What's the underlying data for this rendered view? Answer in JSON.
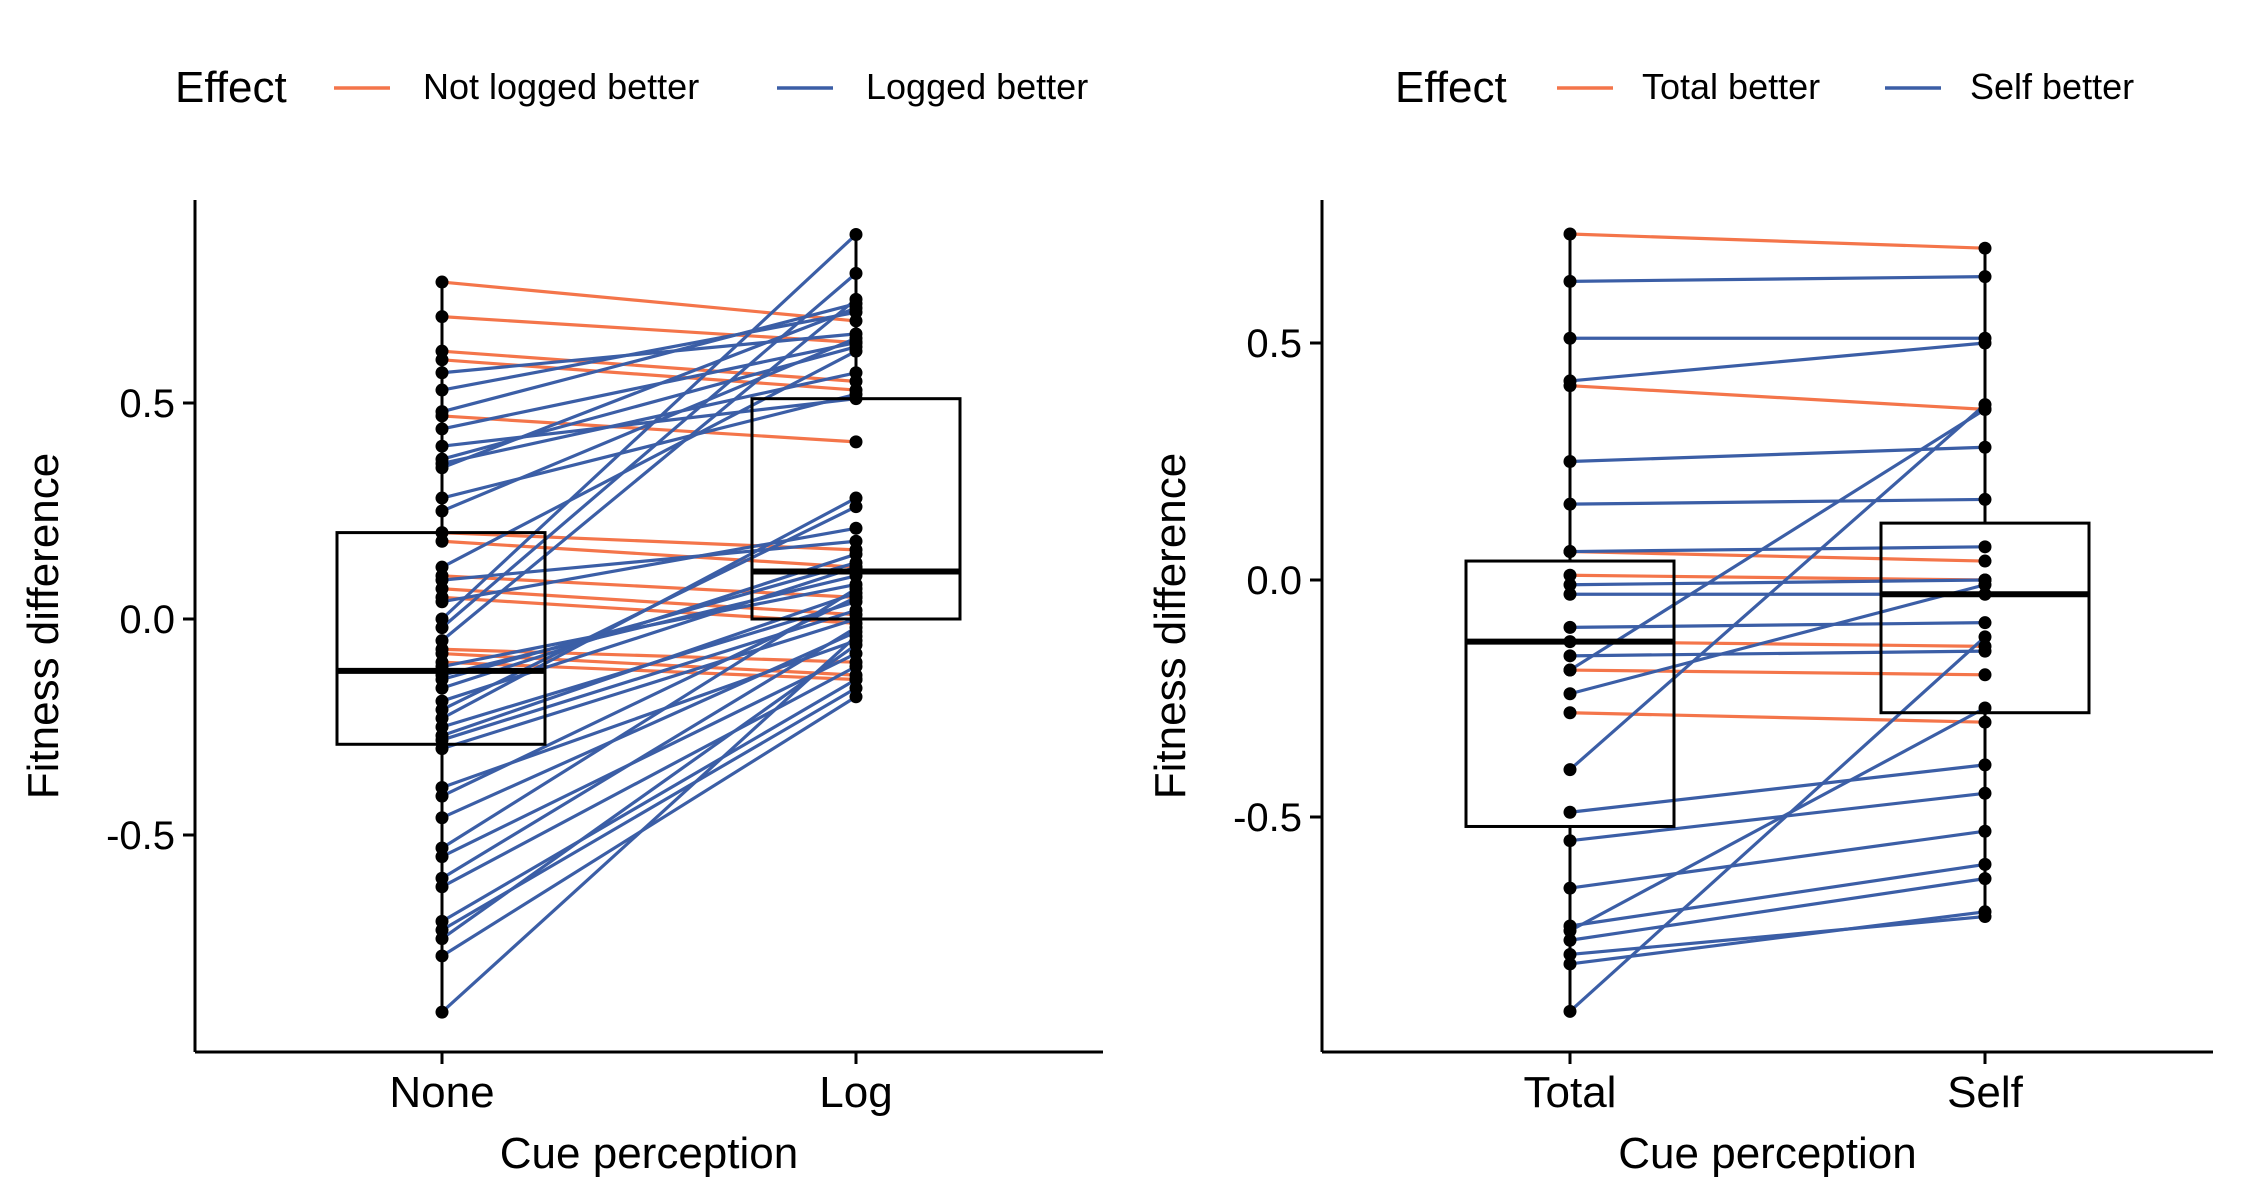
{
  "chart_data": [
    {
      "type": "paired-line-box",
      "categories": [
        "None",
        "Log"
      ],
      "xlabel": "Cue perception",
      "ylabel": "Fitness difference",
      "yticks": [
        -0.5,
        0.0,
        0.5
      ],
      "ytick_labels": [
        "-0.5",
        "0.0",
        "0.5"
      ],
      "ylim": [
        -1.0,
        0.97
      ],
      "legend": {
        "title": "Effect",
        "position": "top",
        "entries": [
          {
            "label": "Not logged better",
            "color": "#f4754a"
          },
          {
            "label": "Logged better",
            "color": "#3b5ea6"
          }
        ]
      },
      "boxes": [
        {
          "category": "None",
          "q1": -0.29,
          "median": -0.12,
          "q3": 0.2,
          "ymin": -0.91,
          "ymax": 0.78
        },
        {
          "category": "Log",
          "q1": 0.0,
          "median": 0.11,
          "q3": 0.51,
          "ymin": -0.18,
          "ymax": 0.89
        }
      ],
      "pairs": [
        {
          "from": 0.78,
          "to": 0.69,
          "group": 0
        },
        {
          "from": 0.7,
          "to": 0.64,
          "group": 0
        },
        {
          "from": 0.62,
          "to": 0.55,
          "group": 0
        },
        {
          "from": 0.6,
          "to": 0.53,
          "group": 0
        },
        {
          "from": 0.47,
          "to": 0.41,
          "group": 0
        },
        {
          "from": 0.2,
          "to": 0.16,
          "group": 0
        },
        {
          "from": 0.18,
          "to": 0.12,
          "group": 0
        },
        {
          "from": 0.1,
          "to": 0.05,
          "group": 0
        },
        {
          "from": 0.07,
          "to": 0.01,
          "group": 0
        },
        {
          "from": 0.05,
          "to": -0.01,
          "group": 0
        },
        {
          "from": -0.07,
          "to": -0.1,
          "group": 0
        },
        {
          "from": -0.08,
          "to": -0.13,
          "group": 0
        },
        {
          "from": -0.1,
          "to": -0.14,
          "group": 0
        },
        {
          "from": 0.57,
          "to": 0.66,
          "group": 1
        },
        {
          "from": 0.53,
          "to": 0.71,
          "group": 1
        },
        {
          "from": 0.48,
          "to": 0.73,
          "group": 1
        },
        {
          "from": 0.44,
          "to": 0.64,
          "group": 1
        },
        {
          "from": 0.4,
          "to": 0.51,
          "group": 1
        },
        {
          "from": 0.37,
          "to": 0.63,
          "group": 1
        },
        {
          "from": 0.36,
          "to": 0.57,
          "group": 1
        },
        {
          "from": 0.35,
          "to": 0.72,
          "group": 1
        },
        {
          "from": 0.28,
          "to": 0.52,
          "group": 1
        },
        {
          "from": 0.25,
          "to": 0.65,
          "group": 1
        },
        {
          "from": 0.12,
          "to": 0.62,
          "group": 1
        },
        {
          "from": 0.09,
          "to": 0.18,
          "group": 1
        },
        {
          "from": 0.04,
          "to": 0.21,
          "group": 1
        },
        {
          "from": 0.0,
          "to": 0.89,
          "group": 1
        },
        {
          "from": -0.02,
          "to": 0.8,
          "group": 1
        },
        {
          "from": -0.05,
          "to": 0.74,
          "group": 1
        },
        {
          "from": -0.11,
          "to": 0.08,
          "group": 1
        },
        {
          "from": -0.13,
          "to": 0.1,
          "group": 1
        },
        {
          "from": -0.14,
          "to": 0.13,
          "group": 1
        },
        {
          "from": -0.16,
          "to": 0.15,
          "group": 1
        },
        {
          "from": -0.19,
          "to": 0.12,
          "group": 1
        },
        {
          "from": -0.21,
          "to": 0.26,
          "group": 1
        },
        {
          "from": -0.23,
          "to": 0.28,
          "group": 1
        },
        {
          "from": -0.25,
          "to": 0.04,
          "group": 1
        },
        {
          "from": -0.27,
          "to": 0.06,
          "group": 1
        },
        {
          "from": -0.28,
          "to": 0.02,
          "group": 1
        },
        {
          "from": -0.3,
          "to": 0.0,
          "group": 1
        },
        {
          "from": -0.39,
          "to": -0.05,
          "group": 1
        },
        {
          "from": -0.41,
          "to": 0.05,
          "group": 1
        },
        {
          "from": -0.46,
          "to": -0.03,
          "group": 1
        },
        {
          "from": -0.53,
          "to": 0.07,
          "group": 1
        },
        {
          "from": -0.55,
          "to": -0.08,
          "group": 1
        },
        {
          "from": -0.6,
          "to": -0.02,
          "group": 1
        },
        {
          "from": -0.62,
          "to": -0.11,
          "group": 1
        },
        {
          "from": -0.7,
          "to": -0.14,
          "group": 1
        },
        {
          "from": -0.72,
          "to": -0.16,
          "group": 1
        },
        {
          "from": -0.74,
          "to": -0.06,
          "group": 1
        },
        {
          "from": -0.78,
          "to": -0.18,
          "group": 1
        },
        {
          "from": -0.91,
          "to": -0.04,
          "group": 1
        }
      ]
    },
    {
      "type": "paired-line-box",
      "categories": [
        "Total",
        "Self"
      ],
      "xlabel": "Cue perception",
      "ylabel": "Fitness difference",
      "yticks": [
        -0.5,
        0.0,
        0.5
      ],
      "ytick_labels": [
        "-0.5",
        "0.0",
        "0.5"
      ],
      "ylim": [
        -1.0,
        0.8
      ],
      "legend": {
        "title": "Effect",
        "position": "top",
        "entries": [
          {
            "label": "Total better",
            "color": "#f4754a"
          },
          {
            "label": "Self better",
            "color": "#3b5ea6"
          }
        ]
      },
      "boxes": [
        {
          "category": "Total",
          "q1": -0.52,
          "median": -0.13,
          "q3": 0.04,
          "ymin": -0.91,
          "ymax": 0.73
        },
        {
          "category": "Self",
          "q1": -0.28,
          "median": -0.03,
          "q3": 0.12,
          "ymin": -0.71,
          "ymax": 0.71
        }
      ],
      "pairs": [
        {
          "from": 0.73,
          "to": 0.7,
          "group": 0
        },
        {
          "from": 0.41,
          "to": 0.36,
          "group": 0
        },
        {
          "from": 0.06,
          "to": 0.04,
          "group": 0
        },
        {
          "from": 0.01,
          "to": 0.0,
          "group": 0
        },
        {
          "from": -0.13,
          "to": -0.14,
          "group": 0
        },
        {
          "from": -0.19,
          "to": -0.2,
          "group": 0
        },
        {
          "from": -0.28,
          "to": -0.3,
          "group": 0
        },
        {
          "from": 0.63,
          "to": 0.64,
          "group": 1
        },
        {
          "from": 0.51,
          "to": 0.51,
          "group": 1
        },
        {
          "from": 0.42,
          "to": 0.5,
          "group": 1
        },
        {
          "from": 0.25,
          "to": 0.28,
          "group": 1
        },
        {
          "from": 0.16,
          "to": 0.17,
          "group": 1
        },
        {
          "from": 0.06,
          "to": 0.07,
          "group": 1
        },
        {
          "from": -0.01,
          "to": 0.0,
          "group": 1
        },
        {
          "from": -0.03,
          "to": -0.03,
          "group": 1
        },
        {
          "from": -0.1,
          "to": -0.09,
          "group": 1
        },
        {
          "from": -0.16,
          "to": -0.15,
          "group": 1
        },
        {
          "from": -0.19,
          "to": 0.36,
          "group": 1
        },
        {
          "from": -0.24,
          "to": -0.01,
          "group": 1
        },
        {
          "from": -0.4,
          "to": 0.37,
          "group": 1
        },
        {
          "from": -0.49,
          "to": -0.39,
          "group": 1
        },
        {
          "from": -0.55,
          "to": -0.45,
          "group": 1
        },
        {
          "from": -0.65,
          "to": -0.53,
          "group": 1
        },
        {
          "from": -0.73,
          "to": -0.6,
          "group": 1
        },
        {
          "from": -0.74,
          "to": -0.27,
          "group": 1
        },
        {
          "from": -0.76,
          "to": -0.63,
          "group": 1
        },
        {
          "from": -0.79,
          "to": -0.71,
          "group": 1
        },
        {
          "from": -0.81,
          "to": -0.7,
          "group": 1
        },
        {
          "from": -0.91,
          "to": -0.12,
          "group": 1
        }
      ]
    }
  ]
}
